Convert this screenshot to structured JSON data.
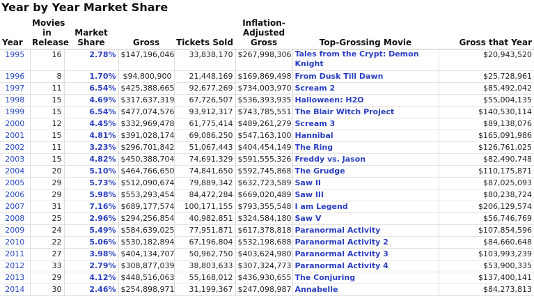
{
  "header": {
    "title": "Year by Year Market Share"
  },
  "table": {
    "headers": [
      "Year",
      "Movies in Release",
      "Market Share",
      "Gross",
      "Tickets Sold",
      "Inflation-Adjusted Gross",
      "Top-Grossing Movie",
      "Gross that Year"
    ],
    "rows": [
      [
        "1995",
        "16",
        "2.78%",
        "$147,196,046",
        "33,838,170",
        "$267,998,306",
        "Tales from the Crypt: Demon Knight",
        "$20,943,520"
      ],
      [
        "1996",
        "8",
        "1.70%",
        "$94,800,900",
        "21,448,169",
        "$169,869,498",
        "From Dusk Till Dawn",
        "$25,728,961"
      ],
      [
        "1997",
        "11",
        "6.54%",
        "$425,388,665",
        "92,677,269",
        "$734,003,970",
        "Scream 2",
        "$85,492,042"
      ],
      [
        "1998",
        "15",
        "4.69%",
        "$317,637,319",
        "67,726,507",
        "$536,393,935",
        "Halloween: H2O",
        "$55,004,135"
      ],
      [
        "1999",
        "15",
        "6.54%",
        "$477,074,576",
        "93,912,317",
        "$743,785,551",
        "The Blair Witch Project",
        "$140,530,114"
      ],
      [
        "2000",
        "12",
        "4.45%",
        "$332,969,478",
        "61,775,414",
        "$489,261,279",
        "Scream 3",
        "$89,138,076"
      ],
      [
        "2001",
        "15",
        "4.81%",
        "$391,028,174",
        "69,086,250",
        "$547,163,100",
        "Hannibal",
        "$165,091,986"
      ],
      [
        "2002",
        "11",
        "3.23%",
        "$296,701,842",
        "51,067,443",
        "$404,454,149",
        "The Ring",
        "$126,761,025"
      ],
      [
        "2003",
        "15",
        "4.82%",
        "$450,388,704",
        "74,691,329",
        "$591,555,326",
        "Freddy vs. Jason",
        "$82,490,748"
      ],
      [
        "2004",
        "20",
        "5.10%",
        "$464,766,650",
        "74,841,650",
        "$592,745,868",
        "The Grudge",
        "$110,175,871"
      ],
      [
        "2005",
        "29",
        "5.73%",
        "$512,090,674",
        "79,889,342",
        "$632,723,589",
        "Saw II",
        "$87,025,093"
      ],
      [
        "2006",
        "29",
        "5.98%",
        "$553,293,454",
        "84,472,284",
        "$669,020,489",
        "Saw III",
        "$80,238,724"
      ],
      [
        "2007",
        "31",
        "7.16%",
        "$689,177,574",
        "100,171,155",
        "$793,355,548",
        "I am Legend",
        "$206,129,574"
      ],
      [
        "2008",
        "25",
        "2.96%",
        "$294,256,854",
        "40,982,851",
        "$324,584,180",
        "Saw V",
        "$56,746,769"
      ],
      [
        "2009",
        "24",
        "5.49%",
        "$584,639,025",
        "77,951,871",
        "$617,378,818",
        "Paranormal Activity",
        "$107,854,596"
      ],
      [
        "2010",
        "22",
        "5.06%",
        "$530,182,894",
        "67,196,804",
        "$532,198,688",
        "Paranormal Activity 2",
        "$84,660,648"
      ],
      [
        "2011",
        "27",
        "3.98%",
        "$404,134,707",
        "50,962,750",
        "$403,624,980",
        "Paranormal Activity 3",
        "$103,993,239"
      ],
      [
        "2012",
        "33",
        "2.79%",
        "$308,877,039",
        "38,803,633",
        "$307,324,773",
        "Paranormal Activity 4",
        "$53,900,335"
      ],
      [
        "2013",
        "29",
        "4.12%",
        "$448,516,063",
        "55,168,012",
        "$436,930,655",
        "The Conjuring",
        "$137,400,141"
      ],
      [
        "2014",
        "30",
        "2.46%",
        "$254,898,971",
        "31,199,367",
        "$247,098,987",
        "Annabelle",
        "$84,273,813"
      ]
    ]
  }
}
